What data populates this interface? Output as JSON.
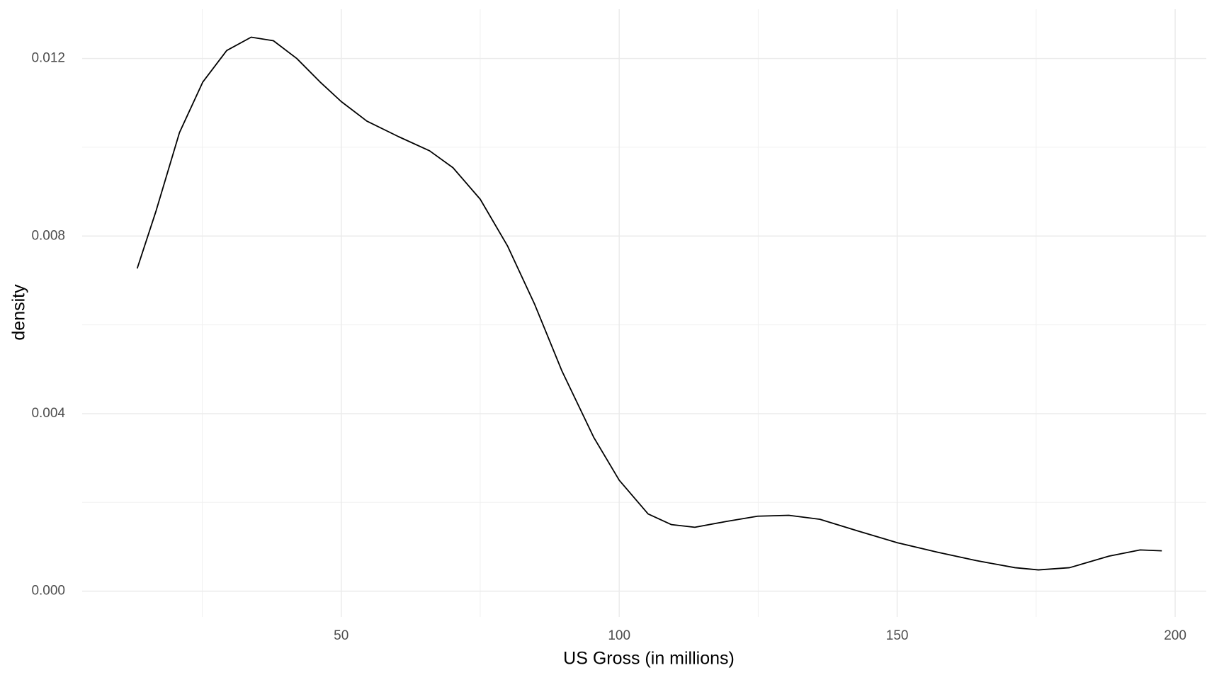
{
  "chart_data": {
    "type": "line",
    "x_label": "US Gross (in millions)",
    "y_label": "density",
    "x": [
      13.3,
      16.7,
      20.9,
      25.1,
      29.4,
      33.8,
      37.8,
      42.0,
      46.2,
      50.0,
      54.6,
      60.3,
      65.9,
      70.1,
      75.0,
      79.9,
      84.8,
      89.7,
      95.4,
      100.0,
      105.2,
      109.4,
      113.6,
      119.2,
      124.9,
      130.5,
      136.1,
      143.1,
      150.1,
      157.2,
      164.2,
      171.2,
      175.4,
      181.0,
      188.1,
      193.7,
      197.6
    ],
    "series": [
      {
        "color": "#000000",
        "values": [
          0.00727,
          0.00857,
          0.01033,
          0.01147,
          0.01218,
          0.01248,
          0.0124,
          0.012,
          0.01147,
          0.01103,
          0.01059,
          0.01024,
          0.00992,
          0.00954,
          0.00883,
          0.00778,
          0.00646,
          0.00496,
          0.00347,
          0.0025,
          0.00174,
          0.0015,
          0.00144,
          0.00157,
          0.00169,
          0.00171,
          0.00162,
          0.00135,
          0.00109,
          0.00088,
          0.00069,
          0.00053,
          0.00048,
          0.00053,
          0.00079,
          0.00093,
          0.00091
        ]
      }
    ],
    "xlim": [
      3.4,
      205.6
    ],
    "ylim": [
      -0.00058,
      0.01311
    ],
    "xticks": [
      50,
      100,
      150,
      200
    ],
    "yticks": [
      {
        "value": 0,
        "label": "0.000"
      },
      {
        "value": 0.004,
        "label": "0.004"
      },
      {
        "value": 0.008,
        "label": "0.008"
      },
      {
        "value": 0.012,
        "label": "0.012"
      }
    ],
    "minor_xticks": [
      25,
      75,
      125,
      175
    ],
    "minor_yticks": [
      0.002,
      0.006,
      0.01
    ],
    "grid": true
  }
}
